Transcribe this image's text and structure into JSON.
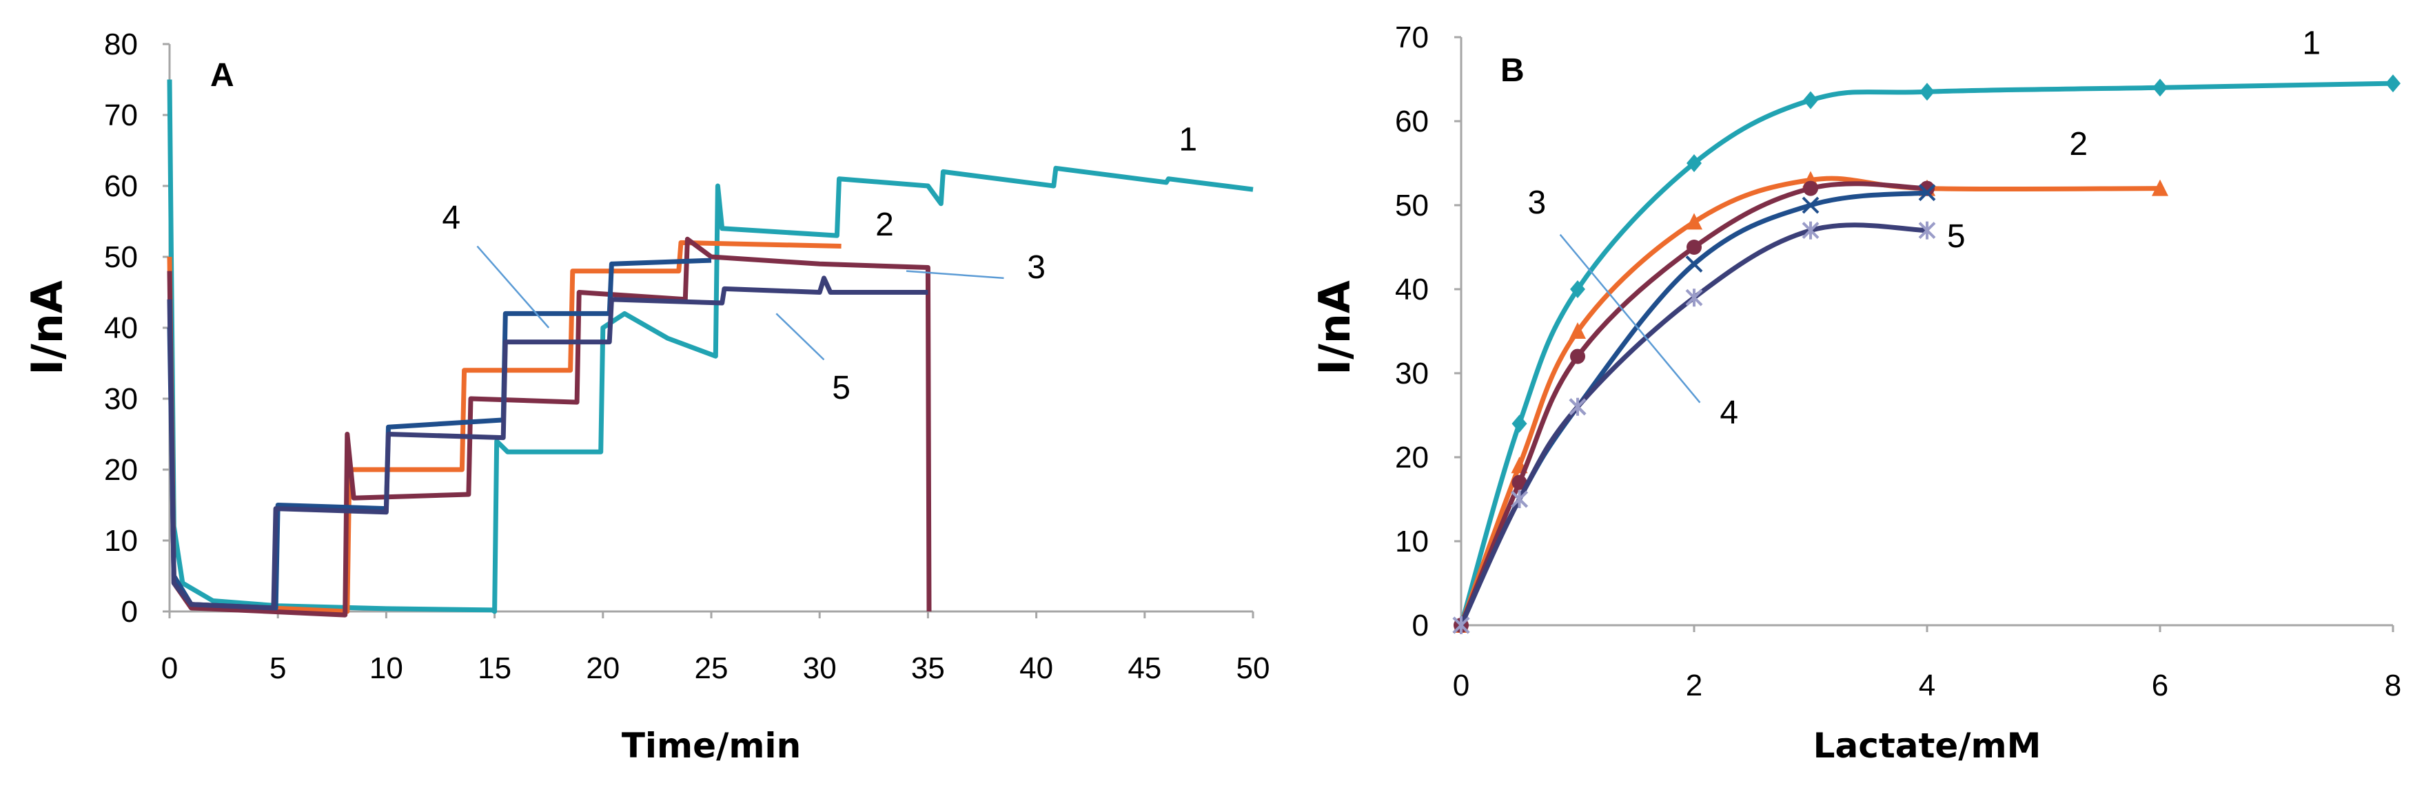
{
  "chart_data": [
    {
      "panel": "A",
      "type": "line",
      "xlabel": "Time/min",
      "ylabel": "I/nA",
      "xlim": [
        0,
        50
      ],
      "ylim": [
        0,
        80
      ],
      "x_ticks": [
        0,
        5,
        10,
        15,
        20,
        25,
        30,
        35,
        40,
        45,
        50
      ],
      "y_ticks": [
        0,
        10,
        20,
        30,
        40,
        50,
        60,
        70,
        80
      ],
      "series": [
        {
          "name": "1",
          "color": "#21A3B2",
          "points": [
            [
              0,
              75
            ],
            [
              0.2,
              12
            ],
            [
              0.6,
              4
            ],
            [
              2,
              1.5
            ],
            [
              5,
              0.8
            ],
            [
              10,
              0.4
            ],
            [
              14.9,
              0.2
            ],
            [
              15,
              0
            ],
            [
              15.1,
              24
            ],
            [
              15.6,
              22.5
            ],
            [
              19.9,
              22.5
            ],
            [
              20,
              40
            ],
            [
              21,
              42
            ],
            [
              23,
              38.5
            ],
            [
              25.2,
              36
            ],
            [
              25.3,
              60
            ],
            [
              25.5,
              54
            ],
            [
              30.8,
              53
            ],
            [
              30.9,
              61
            ],
            [
              35,
              60
            ],
            [
              35.6,
              57.5
            ],
            [
              35.7,
              62
            ],
            [
              40.8,
              60
            ],
            [
              40.9,
              62.5
            ],
            [
              46,
              60.5
            ],
            [
              46.1,
              61
            ],
            [
              50,
              59.5
            ]
          ]
        },
        {
          "name": "2",
          "color": "#ED6B2C",
          "points": [
            [
              0,
              50
            ],
            [
              0.2,
              5
            ],
            [
              1,
              1
            ],
            [
              8.2,
              0
            ],
            [
              8.3,
              20
            ],
            [
              13.5,
              20
            ],
            [
              13.6,
              34
            ],
            [
              18.5,
              34
            ],
            [
              18.6,
              48
            ],
            [
              23.5,
              48
            ],
            [
              23.6,
              52
            ],
            [
              31,
              51.5
            ]
          ]
        },
        {
          "name": "3",
          "color": "#7E2E47",
          "points": [
            [
              0,
              48
            ],
            [
              0.2,
              4
            ],
            [
              1,
              0.5
            ],
            [
              8.1,
              -0.5
            ],
            [
              8.2,
              25
            ],
            [
              8.5,
              16
            ],
            [
              13.8,
              16.5
            ],
            [
              13.9,
              30
            ],
            [
              18.8,
              29.5
            ],
            [
              18.9,
              45
            ],
            [
              23.8,
              44
            ],
            [
              23.9,
              52.5
            ],
            [
              25,
              50
            ],
            [
              30,
              49
            ],
            [
              35,
              48.5
            ],
            [
              35.05,
              0
            ]
          ]
        },
        {
          "name": "4",
          "color": "#1F4E8C",
          "points": [
            [
              0,
              40
            ],
            [
              0.2,
              5
            ],
            [
              1,
              1
            ],
            [
              4.9,
              0.5
            ],
            [
              5,
              15
            ],
            [
              10,
              14.5
            ],
            [
              10.1,
              26
            ],
            [
              15.4,
              27
            ],
            [
              15.5,
              42
            ],
            [
              20.3,
              42
            ],
            [
              20.4,
              49
            ],
            [
              25,
              49.5
            ]
          ]
        },
        {
          "name": "5",
          "color": "#3B3F78",
          "points": [
            [
              0,
              44
            ],
            [
              0.2,
              4
            ],
            [
              1,
              1
            ],
            [
              4.8,
              0.5
            ],
            [
              4.9,
              14.5
            ],
            [
              10,
              14
            ],
            [
              10.1,
              25
            ],
            [
              15.4,
              24.5
            ],
            [
              15.5,
              38
            ],
            [
              20.3,
              38
            ],
            [
              20.4,
              44
            ],
            [
              25.5,
              43.5
            ],
            [
              25.6,
              45.5
            ],
            [
              30,
              45
            ],
            [
              30.2,
              47
            ],
            [
              30.5,
              45
            ],
            [
              35,
              45
            ]
          ]
        }
      ],
      "labels": [
        {
          "text": "1",
          "x": 47,
          "y": 65
        },
        {
          "text": "2",
          "x": 33,
          "y": 53
        },
        {
          "text": "3",
          "x": 40,
          "y": 47
        },
        {
          "text": "4",
          "x": 13,
          "y": 54
        },
        {
          "text": "5",
          "x": 31,
          "y": 30
        }
      ],
      "leaders": [
        {
          "from": [
            14.2,
            51.5
          ],
          "to": [
            17.5,
            40
          ]
        },
        {
          "from": [
            34,
            48
          ],
          "to": [
            38.5,
            47
          ]
        },
        {
          "from": [
            30.2,
            35.5
          ],
          "to": [
            28,
            42
          ]
        }
      ]
    },
    {
      "panel": "B",
      "type": "line",
      "xlabel": "Lactate/mM",
      "ylabel": "I/nA",
      "xlim": [
        0,
        8
      ],
      "ylim": [
        0,
        70
      ],
      "x_ticks": [
        0,
        2,
        4,
        6,
        8
      ],
      "y_ticks": [
        0,
        10,
        20,
        30,
        40,
        50,
        60,
        70
      ],
      "series": [
        {
          "name": "1",
          "color": "#21A3B2",
          "marker": "diamond",
          "x": [
            0,
            0.5,
            1,
            2,
            3,
            4,
            6,
            8
          ],
          "y": [
            0,
            24,
            40,
            55,
            62.5,
            63.5,
            64,
            64.5
          ]
        },
        {
          "name": "2",
          "color": "#ED6B2C",
          "marker": "triangle",
          "x": [
            0,
            0.5,
            1,
            2,
            3,
            4,
            6
          ],
          "y": [
            0,
            19,
            35,
            48,
            53,
            52,
            52
          ]
        },
        {
          "name": "3",
          "color": "#7E2E47",
          "marker": "circle",
          "x": [
            0,
            0.5,
            1,
            2,
            3,
            4
          ],
          "y": [
            0,
            17,
            32,
            45,
            52,
            52
          ]
        },
        {
          "name": "4",
          "color": "#1F4E8C",
          "marker": "cross",
          "x": [
            0,
            0.5,
            1,
            2,
            3,
            4
          ],
          "y": [
            0,
            15,
            26,
            43,
            50,
            51.5
          ]
        },
        {
          "name": "5",
          "color": "#3B3F78",
          "marker": "asterisk",
          "x": [
            0,
            0.5,
            1,
            2,
            3,
            4
          ],
          "y": [
            0,
            15,
            26,
            39,
            47,
            47
          ]
        }
      ],
      "labels": [
        {
          "text": "1",
          "x": 7.3,
          "y": 68
        },
        {
          "text": "2",
          "x": 5.3,
          "y": 56
        },
        {
          "text": "3",
          "x": 0.65,
          "y": 49
        },
        {
          "text": "4",
          "x": 2.3,
          "y": 24
        },
        {
          "text": "5",
          "x": 4.25,
          "y": 45
        }
      ],
      "leaders": [
        {
          "from": [
            0.85,
            46.5
          ],
          "to": [
            2.05,
            26.5
          ]
        }
      ]
    }
  ]
}
